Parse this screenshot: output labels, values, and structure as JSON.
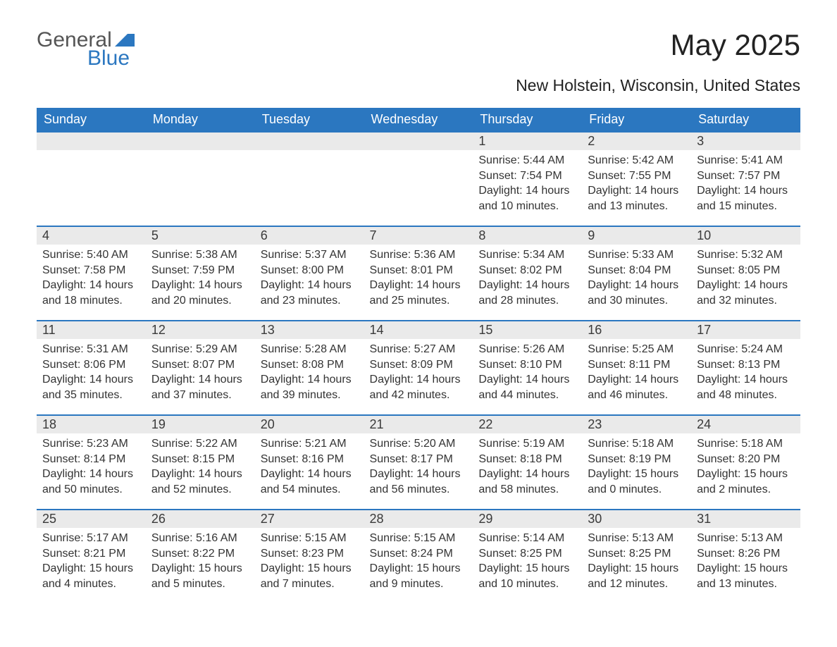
{
  "logo": {
    "text1": "General",
    "text2": "Blue"
  },
  "title": "May 2025",
  "subtitle": "New Holstein, Wisconsin, United States",
  "colors": {
    "header_bg": "#2b77c0",
    "header_text": "#ffffff",
    "daynum_bg": "#eaeaea",
    "daynum_border": "#2b77c0",
    "body_text": "#333333",
    "logo_gray": "#555555",
    "logo_blue": "#2b77c0"
  },
  "fontsizes": {
    "title": 42,
    "subtitle": 23,
    "weekday": 18,
    "daynum": 18,
    "body": 16
  },
  "weekdays": [
    "Sunday",
    "Monday",
    "Tuesday",
    "Wednesday",
    "Thursday",
    "Friday",
    "Saturday"
  ],
  "weeks": [
    [
      null,
      null,
      null,
      null,
      {
        "n": "1",
        "sr": "Sunrise: 5:44 AM",
        "ss": "Sunset: 7:54 PM",
        "d1": "Daylight: 14 hours",
        "d2": "and 10 minutes."
      },
      {
        "n": "2",
        "sr": "Sunrise: 5:42 AM",
        "ss": "Sunset: 7:55 PM",
        "d1": "Daylight: 14 hours",
        "d2": "and 13 minutes."
      },
      {
        "n": "3",
        "sr": "Sunrise: 5:41 AM",
        "ss": "Sunset: 7:57 PM",
        "d1": "Daylight: 14 hours",
        "d2": "and 15 minutes."
      }
    ],
    [
      {
        "n": "4",
        "sr": "Sunrise: 5:40 AM",
        "ss": "Sunset: 7:58 PM",
        "d1": "Daylight: 14 hours",
        "d2": "and 18 minutes."
      },
      {
        "n": "5",
        "sr": "Sunrise: 5:38 AM",
        "ss": "Sunset: 7:59 PM",
        "d1": "Daylight: 14 hours",
        "d2": "and 20 minutes."
      },
      {
        "n": "6",
        "sr": "Sunrise: 5:37 AM",
        "ss": "Sunset: 8:00 PM",
        "d1": "Daylight: 14 hours",
        "d2": "and 23 minutes."
      },
      {
        "n": "7",
        "sr": "Sunrise: 5:36 AM",
        "ss": "Sunset: 8:01 PM",
        "d1": "Daylight: 14 hours",
        "d2": "and 25 minutes."
      },
      {
        "n": "8",
        "sr": "Sunrise: 5:34 AM",
        "ss": "Sunset: 8:02 PM",
        "d1": "Daylight: 14 hours",
        "d2": "and 28 minutes."
      },
      {
        "n": "9",
        "sr": "Sunrise: 5:33 AM",
        "ss": "Sunset: 8:04 PM",
        "d1": "Daylight: 14 hours",
        "d2": "and 30 minutes."
      },
      {
        "n": "10",
        "sr": "Sunrise: 5:32 AM",
        "ss": "Sunset: 8:05 PM",
        "d1": "Daylight: 14 hours",
        "d2": "and 32 minutes."
      }
    ],
    [
      {
        "n": "11",
        "sr": "Sunrise: 5:31 AM",
        "ss": "Sunset: 8:06 PM",
        "d1": "Daylight: 14 hours",
        "d2": "and 35 minutes."
      },
      {
        "n": "12",
        "sr": "Sunrise: 5:29 AM",
        "ss": "Sunset: 8:07 PM",
        "d1": "Daylight: 14 hours",
        "d2": "and 37 minutes."
      },
      {
        "n": "13",
        "sr": "Sunrise: 5:28 AM",
        "ss": "Sunset: 8:08 PM",
        "d1": "Daylight: 14 hours",
        "d2": "and 39 minutes."
      },
      {
        "n": "14",
        "sr": "Sunrise: 5:27 AM",
        "ss": "Sunset: 8:09 PM",
        "d1": "Daylight: 14 hours",
        "d2": "and 42 minutes."
      },
      {
        "n": "15",
        "sr": "Sunrise: 5:26 AM",
        "ss": "Sunset: 8:10 PM",
        "d1": "Daylight: 14 hours",
        "d2": "and 44 minutes."
      },
      {
        "n": "16",
        "sr": "Sunrise: 5:25 AM",
        "ss": "Sunset: 8:11 PM",
        "d1": "Daylight: 14 hours",
        "d2": "and 46 minutes."
      },
      {
        "n": "17",
        "sr": "Sunrise: 5:24 AM",
        "ss": "Sunset: 8:13 PM",
        "d1": "Daylight: 14 hours",
        "d2": "and 48 minutes."
      }
    ],
    [
      {
        "n": "18",
        "sr": "Sunrise: 5:23 AM",
        "ss": "Sunset: 8:14 PM",
        "d1": "Daylight: 14 hours",
        "d2": "and 50 minutes."
      },
      {
        "n": "19",
        "sr": "Sunrise: 5:22 AM",
        "ss": "Sunset: 8:15 PM",
        "d1": "Daylight: 14 hours",
        "d2": "and 52 minutes."
      },
      {
        "n": "20",
        "sr": "Sunrise: 5:21 AM",
        "ss": "Sunset: 8:16 PM",
        "d1": "Daylight: 14 hours",
        "d2": "and 54 minutes."
      },
      {
        "n": "21",
        "sr": "Sunrise: 5:20 AM",
        "ss": "Sunset: 8:17 PM",
        "d1": "Daylight: 14 hours",
        "d2": "and 56 minutes."
      },
      {
        "n": "22",
        "sr": "Sunrise: 5:19 AM",
        "ss": "Sunset: 8:18 PM",
        "d1": "Daylight: 14 hours",
        "d2": "and 58 minutes."
      },
      {
        "n": "23",
        "sr": "Sunrise: 5:18 AM",
        "ss": "Sunset: 8:19 PM",
        "d1": "Daylight: 15 hours",
        "d2": "and 0 minutes."
      },
      {
        "n": "24",
        "sr": "Sunrise: 5:18 AM",
        "ss": "Sunset: 8:20 PM",
        "d1": "Daylight: 15 hours",
        "d2": "and 2 minutes."
      }
    ],
    [
      {
        "n": "25",
        "sr": "Sunrise: 5:17 AM",
        "ss": "Sunset: 8:21 PM",
        "d1": "Daylight: 15 hours",
        "d2": "and 4 minutes."
      },
      {
        "n": "26",
        "sr": "Sunrise: 5:16 AM",
        "ss": "Sunset: 8:22 PM",
        "d1": "Daylight: 15 hours",
        "d2": "and 5 minutes."
      },
      {
        "n": "27",
        "sr": "Sunrise: 5:15 AM",
        "ss": "Sunset: 8:23 PM",
        "d1": "Daylight: 15 hours",
        "d2": "and 7 minutes."
      },
      {
        "n": "28",
        "sr": "Sunrise: 5:15 AM",
        "ss": "Sunset: 8:24 PM",
        "d1": "Daylight: 15 hours",
        "d2": "and 9 minutes."
      },
      {
        "n": "29",
        "sr": "Sunrise: 5:14 AM",
        "ss": "Sunset: 8:25 PM",
        "d1": "Daylight: 15 hours",
        "d2": "and 10 minutes."
      },
      {
        "n": "30",
        "sr": "Sunrise: 5:13 AM",
        "ss": "Sunset: 8:25 PM",
        "d1": "Daylight: 15 hours",
        "d2": "and 12 minutes."
      },
      {
        "n": "31",
        "sr": "Sunrise: 5:13 AM",
        "ss": "Sunset: 8:26 PM",
        "d1": "Daylight: 15 hours",
        "d2": "and 13 minutes."
      }
    ]
  ]
}
